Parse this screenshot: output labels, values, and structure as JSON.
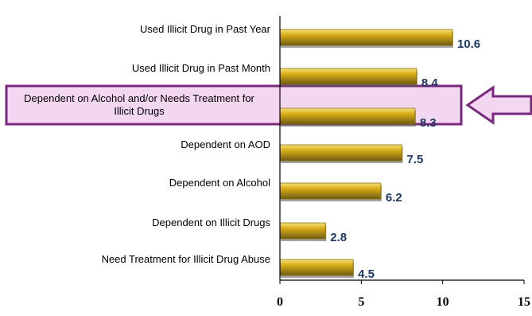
{
  "chart_data": {
    "type": "bar",
    "orientation": "horizontal",
    "categories": [
      "Used Illicit Drug in Past Year",
      "Used Illicit Drug in Past Month",
      "Dependent on Alcohol and/or Needs Treatment for Illicit Drugs",
      "Dependent on AOD",
      "Dependent on Alcohol",
      "Dependent on Illicit Drugs",
      "Need Treatment for Illicit Drug Abuse"
    ],
    "label_lines": [
      [
        "Used Illicit Drug in Past Year"
      ],
      [
        "Used Illicit Drug in Past Month"
      ],
      [
        "Dependent on Alcohol and/or Needs Treatment for",
        "Illicit Drugs"
      ],
      [
        "Dependent on AOD"
      ],
      [
        "Dependent on Alcohol"
      ],
      [
        "Dependent on Illicit Drugs"
      ],
      [
        "Need Treatment for Illicit Drug Abuse"
      ]
    ],
    "values": [
      10.6,
      8.4,
      8.3,
      7.5,
      6.2,
      2.8,
      4.5
    ],
    "value_labels": [
      "10.6",
      "8.4",
      "8.3",
      "7.5",
      "6.2",
      "2.8",
      "4.5"
    ],
    "xlim": [
      0,
      15
    ],
    "x_ticks": [
      0,
      5,
      10,
      15
    ],
    "x_tick_labels": [
      "0",
      "5",
      "10",
      "15"
    ],
    "highlighted_category_index": 2,
    "grid": false,
    "legend": "none"
  },
  "colors": {
    "bar_fill": "#d9ad17",
    "bar_highlight": "#f7e27a",
    "bar_shadow": "#6e5b12",
    "value_label": "#1f3864",
    "highlight_box_fill": "#f3d6f0",
    "highlight_box_stroke": "#7a2a7e",
    "arrow_fill": "#f3d6f0",
    "arrow_stroke": "#7a2a7e"
  }
}
